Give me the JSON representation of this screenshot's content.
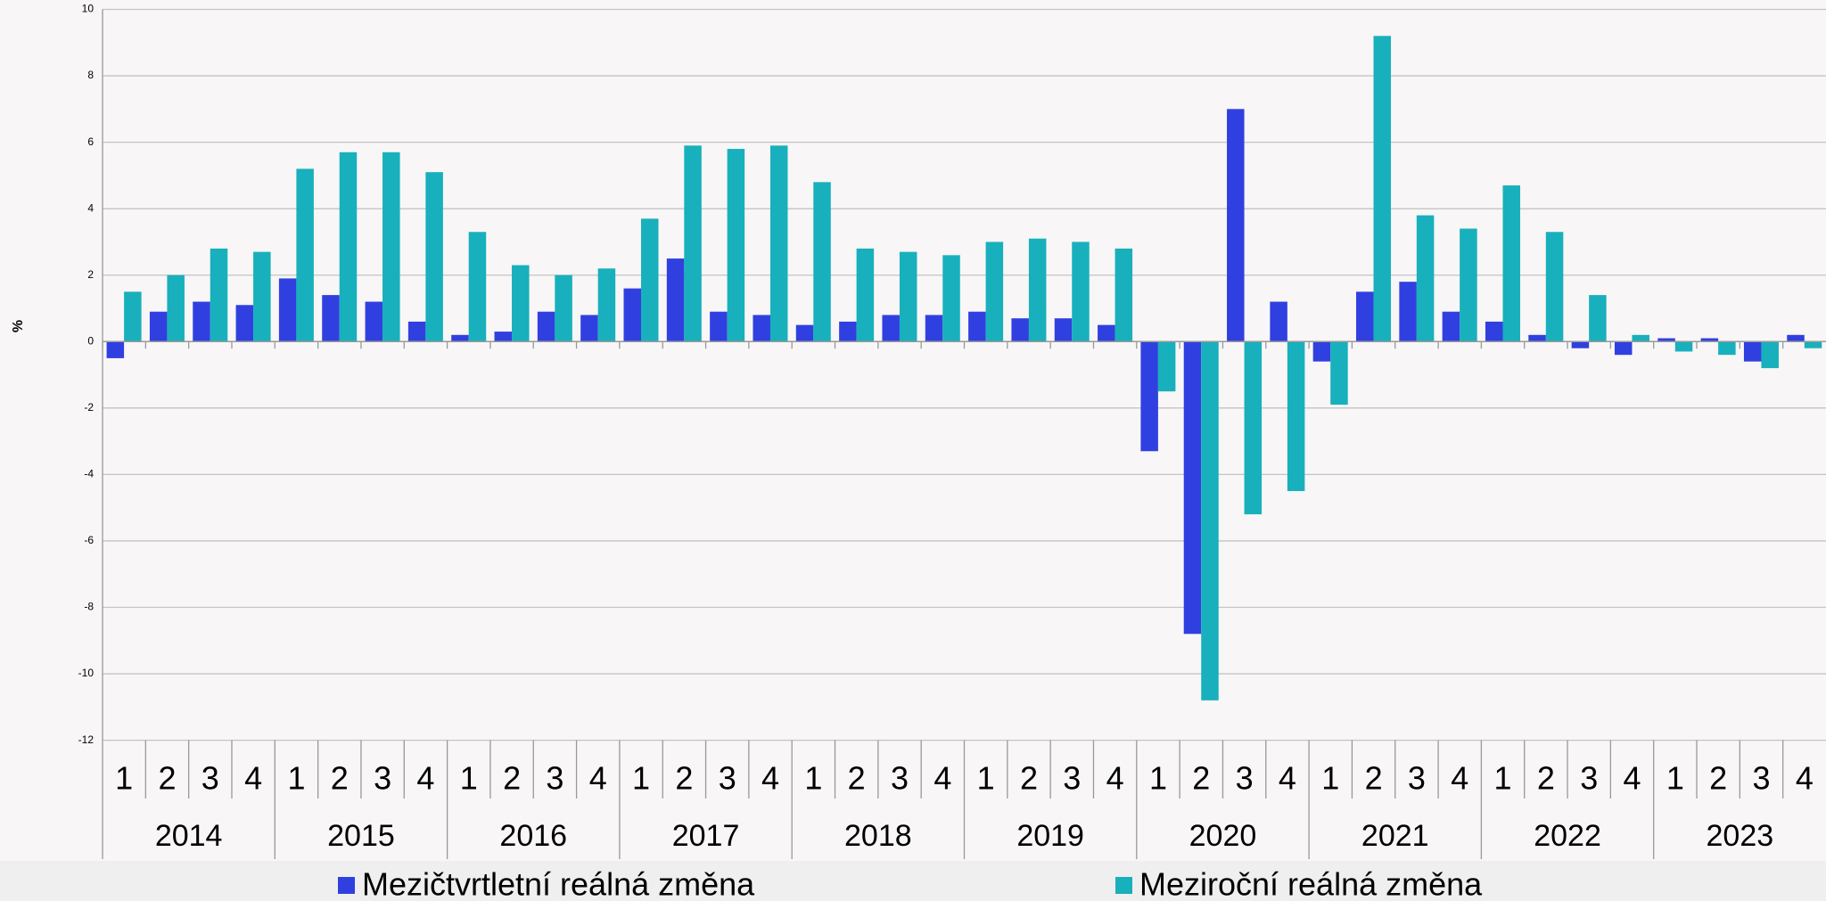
{
  "chart_data": {
    "type": "bar",
    "ylabel": "%",
    "categories": [
      "1",
      "2",
      "3",
      "4",
      "1",
      "2",
      "3",
      "4",
      "1",
      "2",
      "3",
      "4",
      "1",
      "2",
      "3",
      "4",
      "1",
      "2",
      "3",
      "4",
      "1",
      "2",
      "3",
      "4",
      "1",
      "2",
      "3",
      "4",
      "1",
      "2",
      "3",
      "4",
      "1",
      "2",
      "3",
      "4",
      "1",
      "2",
      "3",
      "4"
    ],
    "years": [
      "2014",
      "2015",
      "2016",
      "2017",
      "2018",
      "2019",
      "2020",
      "2021",
      "2022",
      "2023"
    ],
    "series": [
      {
        "name": "Mezičtvrtletní reálná změna",
        "color": "#3040e0",
        "values": [
          -0.5,
          0.9,
          1.2,
          1.1,
          1.9,
          1.4,
          1.2,
          0.6,
          0.2,
          0.3,
          0.9,
          0.8,
          1.6,
          2.5,
          0.9,
          0.8,
          0.5,
          0.6,
          0.8,
          0.8,
          0.9,
          0.7,
          0.7,
          0.5,
          -3.3,
          -8.8,
          7.0,
          1.2,
          -0.6,
          1.5,
          1.8,
          0.9,
          0.6,
          0.2,
          -0.2,
          -0.4,
          0.1,
          0.1,
          -0.6,
          0.2
        ]
      },
      {
        "name": "Meziroční reálná změna",
        "color": "#18b0bc",
        "values": [
          1.5,
          2.0,
          2.8,
          2.7,
          5.2,
          5.7,
          5.7,
          5.1,
          3.3,
          2.3,
          2.0,
          2.2,
          3.7,
          5.9,
          5.8,
          5.9,
          4.8,
          2.8,
          2.7,
          2.6,
          3.0,
          3.1,
          3.0,
          2.8,
          -1.5,
          -10.8,
          -5.2,
          -4.5,
          -1.9,
          9.2,
          3.8,
          3.4,
          4.7,
          3.3,
          1.4,
          0.2,
          -0.3,
          -0.4,
          -0.8,
          -0.2
        ]
      }
    ],
    "ylim": [
      -12,
      10
    ],
    "yticks": [
      -12,
      -10,
      -8,
      -6,
      -4,
      -2,
      0,
      2,
      4,
      6,
      8,
      10
    ],
    "grid": true
  }
}
